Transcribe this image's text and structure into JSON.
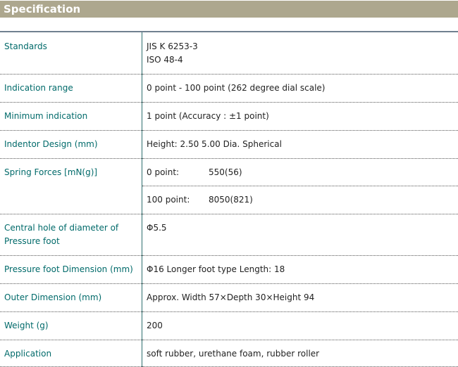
{
  "title": "Specification",
  "rows": [
    {
      "label": "Standards",
      "values": [
        "JIS K 6253-3",
        "ISO 48-4"
      ]
    },
    {
      "label": "Indication range",
      "values": [
        "0 point - 100 point (262 degree dial scale)"
      ]
    },
    {
      "label": "Minimum indication",
      "values": [
        "1 point (Accuracy : ±1 point)"
      ]
    },
    {
      "label": "Indentor Design (mm)",
      "values": [
        "Height: 2.50 5.00 Dia. Spherical"
      ]
    },
    {
      "label": "Spring Forces [mN(g)]",
      "sub": [
        {
          "k": "0 point:",
          "v": "550(56)"
        },
        {
          "k": "100 point:",
          "v": "8050(821)"
        }
      ]
    },
    {
      "label": "Central hole of diameter of Pressure foot",
      "values": [
        "Φ5.5"
      ]
    },
    {
      "label": "Pressure foot Dimension (mm)",
      "values": [
        "Φ16 Longer foot type Length: 18"
      ]
    },
    {
      "label": "Outer Dimension (mm)",
      "values": [
        "Approx. Width 57×Depth 30×Height 94"
      ]
    },
    {
      "label": "Weight (g)",
      "values": [
        "200"
      ]
    },
    {
      "label": "Application",
      "values": [
        "soft rubber, urethane foam, rubber roller"
      ]
    }
  ]
}
